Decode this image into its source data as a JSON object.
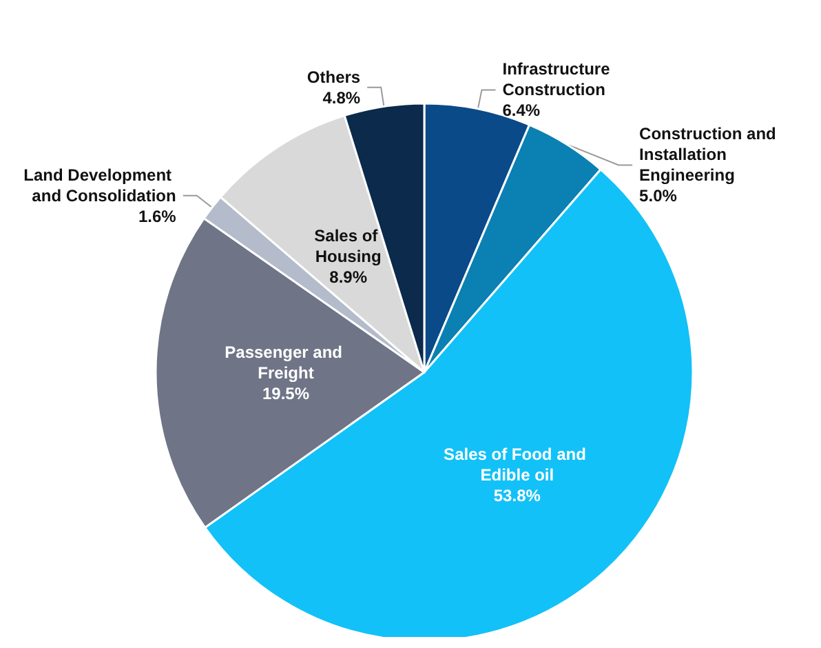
{
  "chart_data": {
    "type": "pie",
    "categories": [
      "Infrastructure Construction",
      "Construction and Installation Engineering",
      "Sales of Food and Edible oil",
      "Passenger and Freight",
      "Land Development and Consolidation",
      "Sales of Housing",
      "Others"
    ],
    "values": [
      6.4,
      5.0,
      53.8,
      19.5,
      1.6,
      8.9,
      4.8
    ],
    "value_labels": [
      "6.4%",
      "5.0%",
      "53.8%",
      "19.5%",
      "1.6%",
      "8.9%",
      "4.8%"
    ],
    "colors": [
      "#0b4a88",
      "#0a80b3",
      "#12c1f7",
      "#6f7487",
      "#b4bbcb",
      "#d9d9d9",
      "#0b2a4c"
    ],
    "legend": false
  }
}
